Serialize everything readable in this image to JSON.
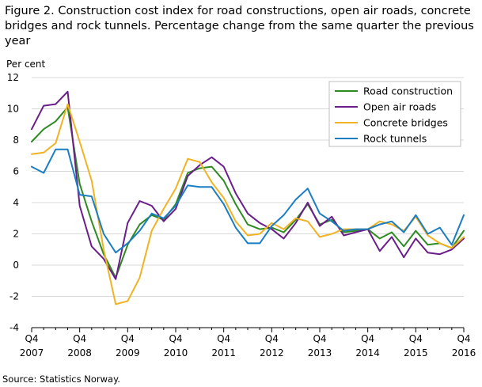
{
  "chart_data": {
    "type": "line",
    "title": "Figure 2. Construction cost index for road constructions, open air roads, concrete bridges and rock tunnels. Percentage change from the same quarter the previous year",
    "ylabel": "Per cent",
    "xlabel": "",
    "ylim": [
      -4,
      12
    ],
    "yticks": [
      -4,
      -2,
      0,
      2,
      4,
      6,
      8,
      10,
      12
    ],
    "x_tick_labels": [
      {
        "q": "Q4",
        "year": "2007",
        "index": 0
      },
      {
        "q": "Q4",
        "year": "2008",
        "index": 4
      },
      {
        "q": "Q4",
        "year": "2009",
        "index": 8
      },
      {
        "q": "Q4",
        "year": "2010",
        "index": 12
      },
      {
        "q": "Q4",
        "year": "2011",
        "index": 16
      },
      {
        "q": "Q4",
        "year": "2012",
        "index": 20
      },
      {
        "q": "Q4",
        "year": "2013",
        "index": 24
      },
      {
        "q": "Q4",
        "year": "2014",
        "index": 28
      },
      {
        "q": "Q4",
        "year": "2015",
        "index": 32
      },
      {
        "q": "Q4",
        "year": "2016",
        "index": 36
      }
    ],
    "grid": true,
    "legend_position": "top-right",
    "series": [
      {
        "name": "Road construction",
        "color": "#2e8b22",
        "values": [
          7.9,
          8.7,
          9.2,
          10.1,
          5.2,
          2.8,
          0.7,
          -0.8,
          1.3,
          2.6,
          3.2,
          2.9,
          3.9,
          5.9,
          6.2,
          6.3,
          5.4,
          3.9,
          2.6,
          2.3,
          2.4,
          2.1,
          2.9,
          3.9,
          2.6,
          2.9,
          2.1,
          2.2,
          2.3,
          1.7,
          2.1,
          1.2,
          2.2,
          1.3,
          1.4,
          1.1,
          2.2
        ]
      },
      {
        "name": "Open air roads",
        "color": "#6b1e8a",
        "values": [
          8.7,
          10.2,
          10.3,
          11.1,
          3.8,
          1.2,
          0.4,
          -0.9,
          2.7,
          4.1,
          3.8,
          2.8,
          3.6,
          5.7,
          6.4,
          6.9,
          6.3,
          4.6,
          3.3,
          2.7,
          2.3,
          1.7,
          2.7,
          4.0,
          2.5,
          3.1,
          1.9,
          2.1,
          2.3,
          0.9,
          1.8,
          0.5,
          1.7,
          0.8,
          0.7,
          1.0,
          1.7
        ]
      },
      {
        "name": "Concrete bridges",
        "color": "#f0b323",
        "values": [
          7.1,
          7.2,
          7.8,
          10.3,
          7.9,
          5.4,
          1.0,
          -2.5,
          -2.3,
          -0.8,
          2.2,
          3.6,
          4.9,
          6.8,
          6.6,
          5.3,
          4.3,
          2.8,
          1.9,
          2.0,
          2.7,
          2.3,
          3.0,
          2.8,
          1.8,
          2.0,
          2.3,
          2.3,
          2.3,
          2.8,
          2.6,
          2.2,
          3.1,
          1.9,
          1.4,
          1.1,
          1.8
        ]
      },
      {
        "name": "Rock tunnels",
        "color": "#1b7ec2",
        "values": [
          6.3,
          5.9,
          7.4,
          7.4,
          4.5,
          4.4,
          2.0,
          0.8,
          1.4,
          2.2,
          3.3,
          3.0,
          3.8,
          5.1,
          5.0,
          5.0,
          3.9,
          2.4,
          1.4,
          1.4,
          2.5,
          3.2,
          4.2,
          4.9,
          3.3,
          2.8,
          2.2,
          2.3,
          2.3,
          2.6,
          2.8,
          2.1,
          3.2,
          2.0,
          2.4,
          1.3,
          3.2
        ]
      }
    ]
  },
  "source": "Source: Statistics Norway."
}
